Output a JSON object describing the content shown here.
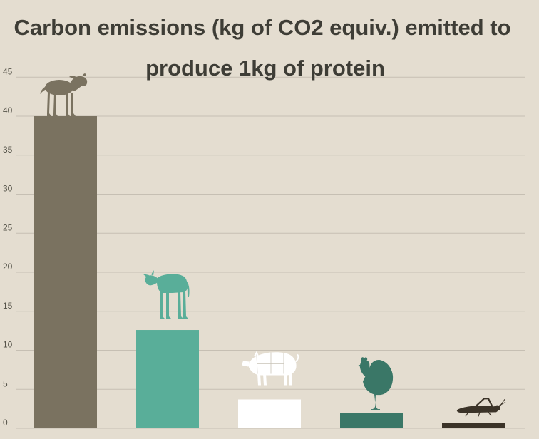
{
  "chart_data": {
    "type": "bar",
    "title": "Carbon emissions (kg of CO2 equiv.) emitted to produce 1kg of protein",
    "title_lines": [
      "Carbon emissions (kg of CO2 equiv.) emitted to",
      "produce 1kg of protein"
    ],
    "xlabel": "",
    "ylabel": "",
    "ylim": [
      0,
      45
    ],
    "y_ticks": [
      0,
      5,
      10,
      15,
      20,
      25,
      30,
      35,
      40,
      45
    ],
    "y_tick_labels": [
      "0",
      "5",
      "10",
      "15",
      "20",
      "25",
      "30",
      "35",
      "40",
      "45"
    ],
    "grid": true,
    "categories": [
      "lamb-icon",
      "cow-icon",
      "pig-icon",
      "chicken-icon",
      "cricket-icon"
    ],
    "values": [
      40,
      12.6,
      3.7,
      2,
      0.7
    ],
    "bar_colors": [
      "#7a7260",
      "#59ae99",
      "#ffffff",
      "#3a7767",
      "#3b3328"
    ],
    "icon_colors": [
      "#7a7260",
      "#59ae99",
      "#ffffff",
      "#3a7767",
      "#3b3328"
    ]
  }
}
